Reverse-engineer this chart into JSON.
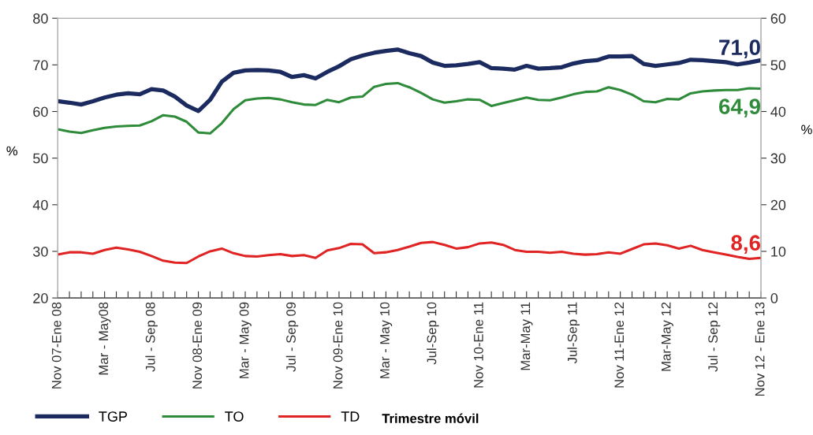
{
  "chart_data": {
    "type": "line",
    "categories": [
      "Nov 07-Ene 08",
      null,
      null,
      null,
      "Mar - May08",
      null,
      null,
      null,
      "Jul - Sep 08",
      null,
      null,
      null,
      "Nov 08-Ene 09",
      null,
      null,
      null,
      "Mar - May 09",
      null,
      null,
      null,
      "Jul - Sep 09",
      null,
      null,
      null,
      "Nov 09-Ene 10",
      null,
      null,
      null,
      "Mar - May 10",
      null,
      null,
      null,
      "Jul-Sep 10",
      null,
      null,
      null,
      "Nov 10-Ene 11",
      null,
      null,
      null,
      "Mar-May 11",
      null,
      null,
      null,
      "Jul-Sep 11",
      null,
      null,
      null,
      "Nov 11-Ene 12",
      null,
      null,
      null,
      "Mar-May 12",
      null,
      null,
      null,
      "Jul - Sep 12",
      null,
      null,
      null,
      "Nov 12 - Ene 13"
    ],
    "xlabel": "Trimestre móvil",
    "ylabel": "%",
    "y2label": "%",
    "ylim": [
      20,
      80
    ],
    "yticks": [
      20,
      30,
      40,
      50,
      60,
      70,
      80
    ],
    "y2lim": [
      0,
      60
    ],
    "y2ticks": [
      0,
      10,
      20,
      30,
      40,
      50,
      60
    ],
    "grid": false,
    "legend": "bottom left",
    "marker": "none",
    "line_style": "solid",
    "series": [
      {
        "name": "TGP",
        "color": "#1b2b60",
        "values": [
          62.2,
          61.9,
          61.5,
          62.2,
          63.0,
          63.6,
          63.9,
          63.7,
          64.8,
          64.5,
          63.2,
          61.3,
          60.1,
          62.5,
          66.4,
          68.3,
          68.8,
          68.9,
          68.8,
          68.5,
          67.4,
          67.8,
          67.1,
          68.5,
          69.7,
          71.2,
          72.0,
          72.6,
          73.0,
          73.3,
          72.5,
          71.9,
          70.5,
          69.8,
          69.9,
          70.2,
          70.6,
          69.3,
          69.2,
          69.0,
          69.8,
          69.2,
          69.3,
          69.5,
          70.3,
          70.8,
          71.0,
          71.8,
          71.8,
          71.9,
          70.2,
          69.8,
          70.1,
          70.4,
          71.1,
          71.0,
          70.8,
          70.6,
          70.1,
          70.5,
          71.0
        ],
        "value_labels": [
          null,
          null,
          null,
          null,
          null,
          null,
          null,
          null,
          null,
          null,
          null,
          null,
          null,
          null,
          null,
          null,
          null,
          null,
          null,
          null,
          null,
          null,
          null,
          null,
          null,
          null,
          null,
          null,
          null,
          null,
          null,
          null,
          null,
          null,
          null,
          null,
          null,
          null,
          null,
          null,
          null,
          null,
          null,
          null,
          null,
          null,
          null,
          null,
          null,
          null,
          null,
          null,
          null,
          null,
          null,
          null,
          null,
          null,
          null,
          null,
          "71,0"
        ]
      },
      {
        "name": "TO",
        "color": "#2e8b3a",
        "values": [
          56.2,
          55.7,
          55.4,
          56.0,
          56.5,
          56.8,
          56.9,
          57.0,
          57.9,
          59.2,
          58.9,
          57.8,
          55.5,
          55.3,
          57.5,
          60.5,
          62.4,
          62.8,
          62.9,
          62.6,
          62.0,
          61.5,
          61.4,
          62.5,
          62.0,
          63.0,
          63.2,
          65.3,
          65.9,
          66.1,
          65.2,
          64.0,
          62.6,
          61.9,
          62.2,
          62.6,
          62.5,
          61.2,
          61.8,
          62.4,
          63.0,
          62.5,
          62.4,
          63.0,
          63.7,
          64.2,
          64.3,
          65.2,
          64.6,
          63.6,
          62.2,
          62.0,
          62.7,
          62.6,
          63.9,
          64.3,
          64.5,
          64.6,
          64.6,
          65.0,
          64.9
        ],
        "value_labels": [
          null,
          null,
          null,
          null,
          null,
          null,
          null,
          null,
          null,
          null,
          null,
          null,
          null,
          null,
          null,
          null,
          null,
          null,
          null,
          null,
          null,
          null,
          null,
          null,
          null,
          null,
          null,
          null,
          null,
          null,
          null,
          null,
          null,
          null,
          null,
          null,
          null,
          null,
          null,
          null,
          null,
          null,
          null,
          null,
          null,
          null,
          null,
          null,
          null,
          null,
          null,
          null,
          null,
          null,
          null,
          null,
          null,
          null,
          null,
          null,
          "64,9"
        ]
      },
      {
        "name": "TD",
        "color": "#e02424",
        "axis": "y2",
        "values": [
          9.3,
          9.8,
          9.8,
          9.5,
          10.3,
          10.8,
          10.4,
          9.9,
          9.0,
          8.0,
          7.6,
          7.5,
          8.9,
          10.0,
          10.6,
          9.6,
          9.0,
          8.9,
          9.2,
          9.4,
          9.0,
          9.2,
          8.6,
          10.2,
          10.7,
          11.6,
          11.5,
          9.6,
          9.8,
          10.3,
          11.0,
          11.8,
          12.0,
          11.4,
          10.6,
          10.9,
          11.7,
          11.9,
          11.4,
          10.3,
          9.9,
          9.9,
          9.7,
          9.9,
          9.5,
          9.3,
          9.4,
          9.8,
          9.5,
          10.5,
          11.5,
          11.7,
          11.3,
          10.6,
          11.2,
          10.3,
          9.8,
          9.3,
          8.8,
          8.4,
          8.6
        ],
        "value_labels": [
          null,
          null,
          null,
          null,
          null,
          null,
          null,
          null,
          null,
          null,
          null,
          null,
          null,
          null,
          null,
          null,
          null,
          null,
          null,
          null,
          null,
          null,
          null,
          null,
          null,
          null,
          null,
          null,
          null,
          null,
          null,
          null,
          null,
          null,
          null,
          null,
          null,
          null,
          null,
          null,
          null,
          null,
          null,
          null,
          null,
          null,
          null,
          null,
          null,
          null,
          null,
          null,
          null,
          null,
          null,
          null,
          null,
          null,
          null,
          null,
          "8,6"
        ]
      }
    ]
  }
}
